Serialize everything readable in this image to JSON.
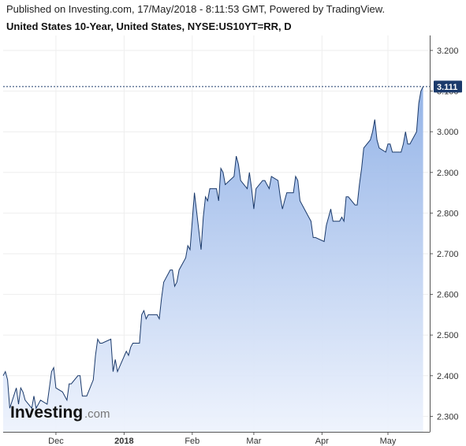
{
  "header": {
    "published": "Published on Investing.com, 17/May/2018 - 8:11:53 GMT, Powered by TradingView.",
    "instrument": "United States 10-Year, United States, NYSE:US10YT=RR, D"
  },
  "logo": {
    "main": "Investing",
    "domain": ".com"
  },
  "colors": {
    "line": "#1b3a6b",
    "area_top": "#8fb0e6",
    "area_bottom": "#eef3fd",
    "badge": "#1b3a6b",
    "grid": "#eeeeee"
  },
  "chart_data": {
    "type": "area",
    "title": "United States 10-Year, United States, NYSE:US10YT=RR, D",
    "xlabel": "",
    "ylabel": "",
    "ylim": [
      2.262,
      3.2368
    ],
    "xlim": [
      "2017-11-07",
      "2018-05-20"
    ],
    "y_ticks": [
      3.2,
      3.1,
      3.0,
      2.9,
      2.8,
      2.7,
      2.6,
      2.5,
      2.4,
      2.3
    ],
    "y_tick_labels": [
      "3.200",
      "3.100",
      "3.000",
      "2.900",
      "2.800",
      "2.700",
      "2.600",
      "2.500",
      "2.400",
      "2.300"
    ],
    "x_ticks": [
      {
        "date": "2017-12-01",
        "label": "Dec",
        "bold": false
      },
      {
        "date": "2018-01-01",
        "label": "2018",
        "bold": true
      },
      {
        "date": "2018-02-01",
        "label": "Feb",
        "bold": false
      },
      {
        "date": "2018-03-01",
        "label": "Mar",
        "bold": false
      },
      {
        "date": "2018-04-01",
        "label": "Apr",
        "bold": false
      },
      {
        "date": "2018-05-01",
        "label": "May",
        "bold": false
      }
    ],
    "last_value": "3.111",
    "grid": true,
    "series": [
      {
        "x": [
          "2017-11-07",
          "2017-11-08",
          "2017-11-09",
          "2017-11-10",
          "2017-11-13",
          "2017-11-14",
          "2017-11-15",
          "2017-11-16",
          "2017-11-17",
          "2017-11-20",
          "2017-11-21",
          "2017-11-22",
          "2017-11-24",
          "2017-11-27",
          "2017-11-28",
          "2017-11-29",
          "2017-11-30",
          "2017-12-01",
          "2017-12-04",
          "2017-12-05",
          "2017-12-06",
          "2017-12-07",
          "2017-12-08",
          "2017-12-11",
          "2017-12-12",
          "2017-12-13",
          "2017-12-14",
          "2017-12-15",
          "2017-12-18",
          "2017-12-19",
          "2017-12-20",
          "2017-12-21",
          "2017-12-22",
          "2017-12-26",
          "2017-12-27",
          "2017-12-28",
          "2017-12-29",
          "2018-01-02",
          "2018-01-03",
          "2018-01-04",
          "2018-01-05",
          "2018-01-08",
          "2018-01-09",
          "2018-01-10",
          "2018-01-11",
          "2018-01-12",
          "2018-01-16",
          "2018-01-17",
          "2018-01-18",
          "2018-01-19",
          "2018-01-22",
          "2018-01-23",
          "2018-01-24",
          "2018-01-25",
          "2018-01-26",
          "2018-01-29",
          "2018-01-30",
          "2018-01-31",
          "2018-02-01",
          "2018-02-02",
          "2018-02-05",
          "2018-02-06",
          "2018-02-07",
          "2018-02-08",
          "2018-02-09",
          "2018-02-12",
          "2018-02-13",
          "2018-02-14",
          "2018-02-15",
          "2018-02-16",
          "2018-02-20",
          "2018-02-21",
          "2018-02-22",
          "2018-02-23",
          "2018-02-26",
          "2018-02-27",
          "2018-02-28",
          "2018-03-01",
          "2018-03-02",
          "2018-03-05",
          "2018-03-06",
          "2018-03-07",
          "2018-03-08",
          "2018-03-09",
          "2018-03-12",
          "2018-03-13",
          "2018-03-14",
          "2018-03-15",
          "2018-03-16",
          "2018-03-19",
          "2018-03-20",
          "2018-03-21",
          "2018-03-22",
          "2018-03-23",
          "2018-03-26",
          "2018-03-27",
          "2018-03-28",
          "2018-03-29",
          "2018-04-02",
          "2018-04-03",
          "2018-04-04",
          "2018-04-05",
          "2018-04-06",
          "2018-04-09",
          "2018-04-10",
          "2018-04-11",
          "2018-04-12",
          "2018-04-13",
          "2018-04-16",
          "2018-04-17",
          "2018-04-18",
          "2018-04-19",
          "2018-04-20",
          "2018-04-23",
          "2018-04-24",
          "2018-04-25",
          "2018-04-26",
          "2018-04-27",
          "2018-04-30",
          "2018-05-01",
          "2018-05-02",
          "2018-05-03",
          "2018-05-04",
          "2018-05-07",
          "2018-05-08",
          "2018-05-09",
          "2018-05-10",
          "2018-05-11",
          "2018-05-14",
          "2018-05-15",
          "2018-05-16",
          "2018-05-17"
        ],
        "y": [
          2.4,
          2.41,
          2.39,
          2.32,
          2.37,
          2.33,
          2.37,
          2.36,
          2.34,
          2.32,
          2.35,
          2.32,
          2.34,
          2.33,
          2.37,
          2.41,
          2.42,
          2.37,
          2.36,
          2.35,
          2.34,
          2.38,
          2.38,
          2.4,
          2.4,
          2.35,
          2.35,
          2.35,
          2.39,
          2.45,
          2.49,
          2.48,
          2.48,
          2.49,
          2.41,
          2.44,
          2.41,
          2.46,
          2.45,
          2.47,
          2.48,
          2.48,
          2.55,
          2.56,
          2.54,
          2.55,
          2.55,
          2.54,
          2.59,
          2.63,
          2.66,
          2.66,
          2.62,
          2.63,
          2.66,
          2.69,
          2.72,
          2.71,
          2.78,
          2.85,
          2.71,
          2.79,
          2.84,
          2.83,
          2.86,
          2.86,
          2.83,
          2.91,
          2.9,
          2.87,
          2.89,
          2.94,
          2.92,
          2.88,
          2.86,
          2.9,
          2.86,
          2.81,
          2.86,
          2.88,
          2.88,
          2.87,
          2.86,
          2.89,
          2.88,
          2.84,
          2.81,
          2.83,
          2.85,
          2.85,
          2.89,
          2.88,
          2.83,
          2.82,
          2.79,
          2.78,
          2.74,
          2.74,
          2.73,
          2.77,
          2.79,
          2.81,
          2.78,
          2.78,
          2.79,
          2.78,
          2.84,
          2.84,
          2.82,
          2.82,
          2.87,
          2.91,
          2.96,
          2.98,
          3.0,
          3.03,
          2.98,
          2.96,
          2.95,
          2.97,
          2.97,
          2.95,
          2.95,
          2.95,
          2.97,
          3.0,
          2.97,
          2.97,
          3.0,
          3.07,
          3.1,
          3.111
        ]
      }
    ]
  }
}
